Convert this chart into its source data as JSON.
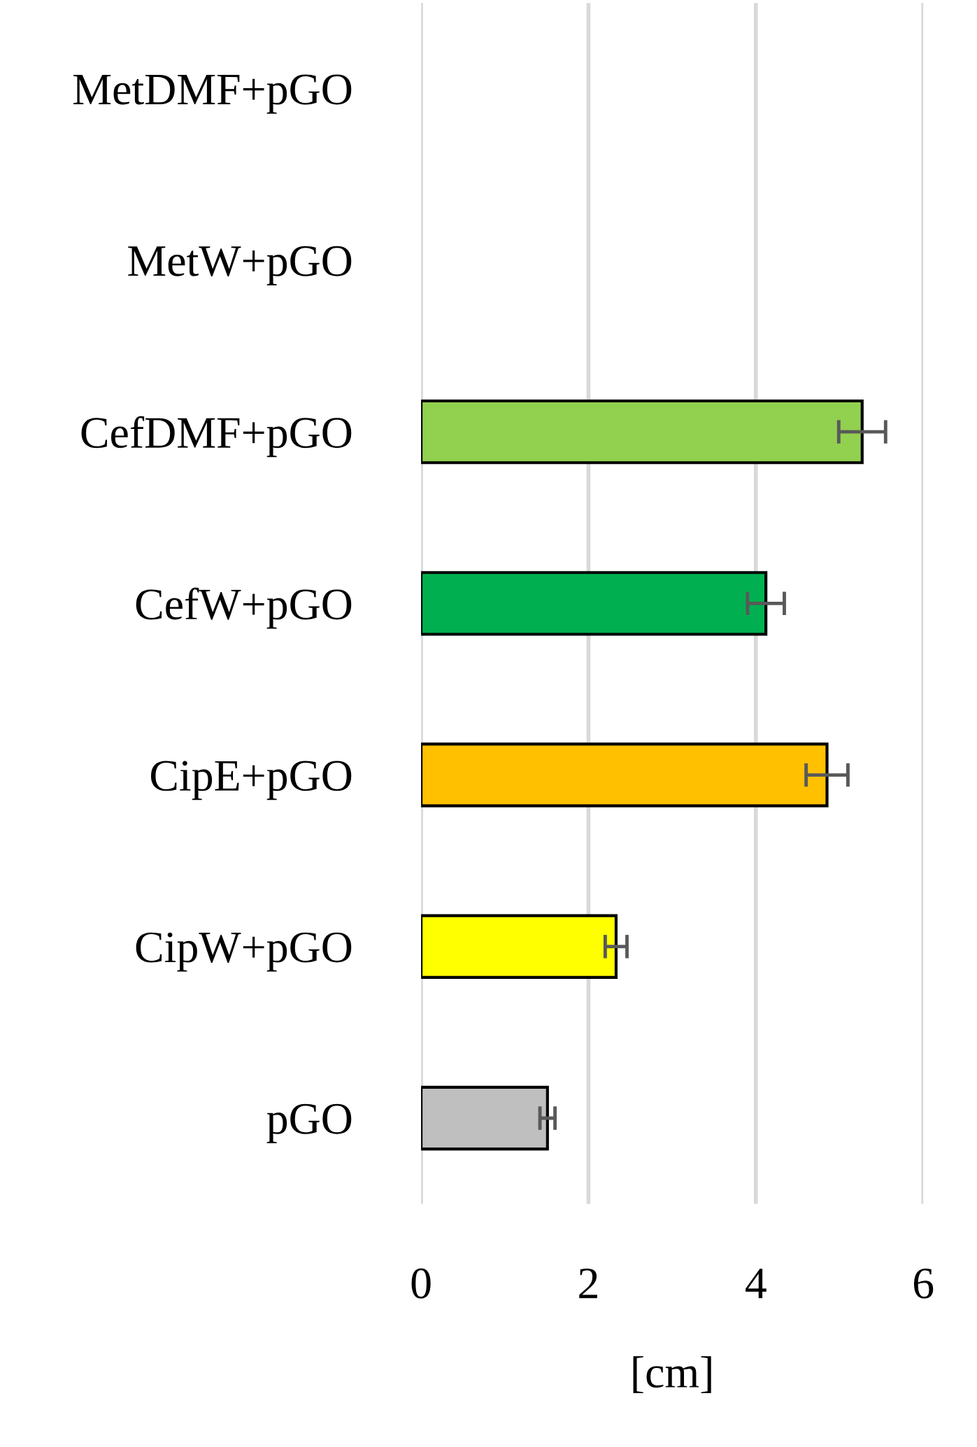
{
  "chart_data": {
    "type": "bar",
    "orientation": "horizontal",
    "xlabel": "[cm]",
    "categories": [
      "MetDMF+pGO",
      "MetW+pGO",
      "CefDMF+pGO",
      "CefW+pGO",
      "CipE+pGO",
      "CipW+pGO",
      "pGO"
    ],
    "values": [
      null,
      null,
      5.27,
      4.12,
      4.85,
      2.33,
      1.51
    ],
    "errors": [
      null,
      null,
      0.28,
      0.22,
      0.25,
      0.13,
      0.09
    ],
    "colors": [
      "#92d050",
      "#00b050",
      "#92d050",
      "#00b050",
      "#ffc000",
      "#ffff00",
      "#bfbfbf"
    ],
    "xlim": [
      0,
      6
    ],
    "xticks": [
      0,
      2,
      4,
      6
    ],
    "grid": "x"
  }
}
